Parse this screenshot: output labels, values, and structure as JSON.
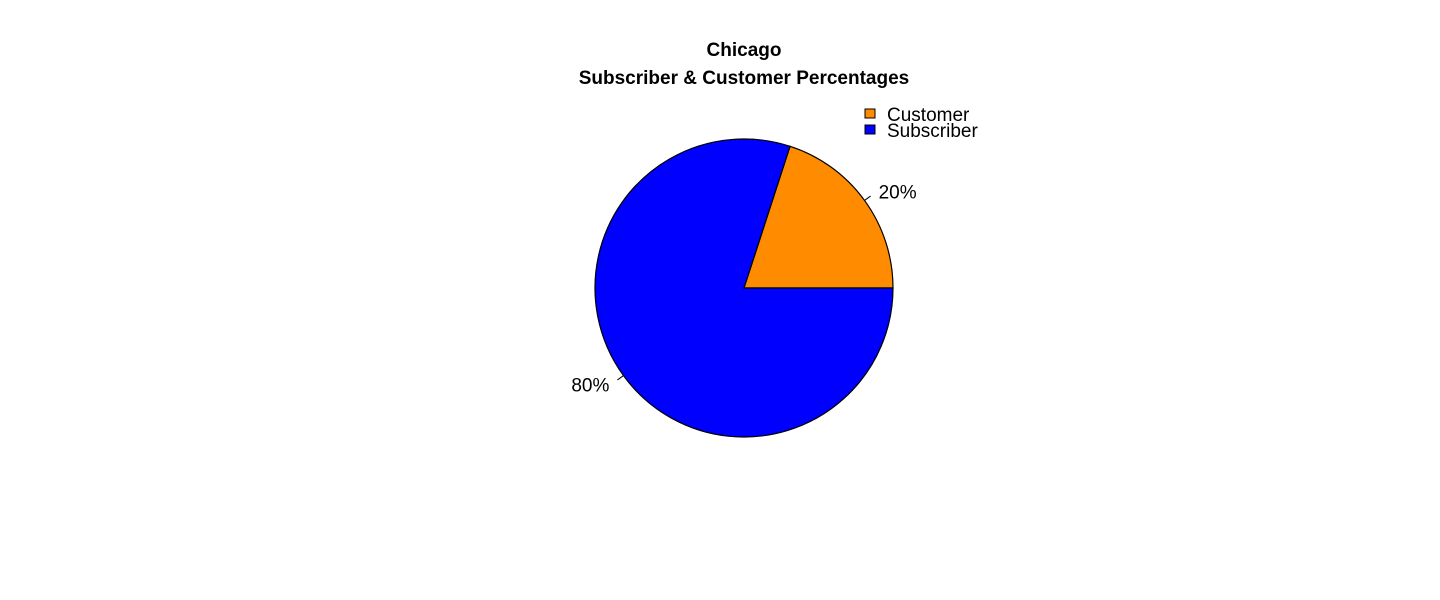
{
  "chart_data": {
    "type": "pie",
    "title": "Chicago",
    "subtitle": "Subscriber & Customer Percentages",
    "slices": [
      {
        "label": "Customer",
        "value": 20,
        "display": "20%",
        "color": "#FF8C00"
      },
      {
        "label": "Subscriber",
        "value": 80,
        "display": "80%",
        "color": "#0000FF"
      }
    ],
    "legend": {
      "position": "top-right",
      "items": [
        "Customer",
        "Subscriber"
      ]
    },
    "start_angle_deg": 0,
    "direction": "counterclockwise"
  }
}
